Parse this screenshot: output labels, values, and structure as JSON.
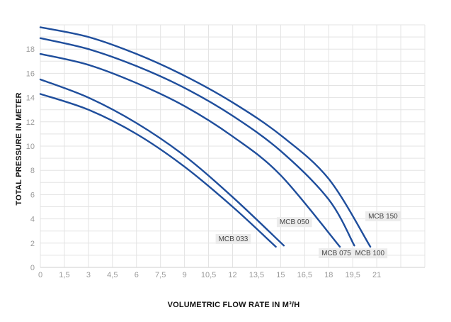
{
  "chart_data": {
    "type": "line",
    "xlabel": "VOLUMETRIC FLOW RATE IN M³/H",
    "ylabel": "TOTAL PRESSURE IN METER",
    "xlim": [
      0,
      24
    ],
    "ylim": [
      0,
      20
    ],
    "x_ticks": [
      "0",
      "1,5",
      "3",
      "4,5",
      "6",
      "7,5",
      "9",
      "10,5",
      "12",
      "13,5",
      "15",
      "16,5",
      "18",
      "19,5",
      "21"
    ],
    "y_ticks": [
      "0",
      "2",
      "4",
      "6",
      "8",
      "10",
      "12",
      "14",
      "16",
      "18"
    ],
    "grid": true,
    "line_color": "#1f4e9c",
    "series": [
      {
        "name": "MCB 033",
        "x": [
          0,
          3,
          6,
          9,
          12,
          14.7
        ],
        "y": [
          14.3,
          13.0,
          11.0,
          8.3,
          5.0,
          1.7
        ]
      },
      {
        "name": "MCB 050",
        "x": [
          0,
          3,
          6,
          9,
          12,
          15.2
        ],
        "y": [
          15.5,
          14.0,
          11.9,
          9.2,
          5.8,
          1.8
        ]
      },
      {
        "name": "MCB 075",
        "x": [
          0,
          3,
          6,
          9,
          12,
          15,
          18.7
        ],
        "y": [
          17.6,
          16.7,
          15.2,
          13.3,
          10.8,
          7.6,
          1.7
        ]
      },
      {
        "name": "MCB 100",
        "x": [
          0,
          3,
          6,
          9,
          12,
          15,
          18,
          19.6
        ],
        "y": [
          18.9,
          18.0,
          16.6,
          14.8,
          12.5,
          9.6,
          5.6,
          1.8
        ]
      },
      {
        "name": "MCB 150",
        "x": [
          0,
          3,
          6,
          9,
          12,
          15,
          18,
          20.6
        ],
        "y": [
          19.8,
          19.0,
          17.6,
          15.8,
          13.6,
          10.9,
          7.3,
          1.7
        ]
      }
    ]
  }
}
